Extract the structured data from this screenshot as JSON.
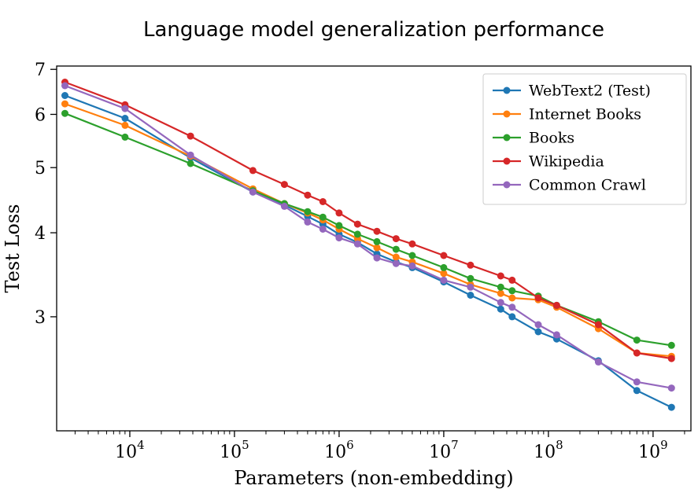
{
  "figure": {
    "title": "Language model generalization performance",
    "xlabel": "Parameters (non-embedding)",
    "ylabel": "Test Loss"
  },
  "chart_data": {
    "type": "line",
    "title": "Language model generalization performance",
    "xlabel": "Parameters (non-embedding)",
    "ylabel": "Test Loss",
    "xscale": "log",
    "yscale": "log",
    "xlim": [
      2000,
      2300000000
    ],
    "ylim": [
      2.03,
      7.08
    ],
    "xticks_exponents": [
      4,
      5,
      6,
      7,
      8,
      9
    ],
    "yticks": [
      7,
      6,
      5,
      4,
      3
    ],
    "grid": false,
    "legend_position": "upper right",
    "marker": "circle",
    "x": [
      2400,
      9000,
      38000,
      150000,
      300000,
      500000,
      700000,
      1000000,
      1500000,
      2300000,
      3500000,
      5000000,
      10000000,
      18000000,
      35000000,
      45000000,
      80000000,
      120000000,
      300000000,
      700000000,
      1500000000
    ],
    "series": [
      {
        "name": "WebText2 (Test)",
        "color": "#1f77b4",
        "values": [
          6.4,
          5.92,
          5.17,
          4.6,
          4.4,
          4.23,
          4.12,
          3.98,
          3.87,
          3.72,
          3.62,
          3.55,
          3.38,
          3.23,
          3.08,
          3.0,
          2.85,
          2.78,
          2.58,
          2.33,
          2.2
        ]
      },
      {
        "name": "Internet Books",
        "color": "#ff7f0e",
        "values": [
          6.22,
          5.78,
          5.2,
          4.65,
          4.42,
          4.28,
          4.18,
          4.05,
          3.92,
          3.8,
          3.68,
          3.62,
          3.48,
          3.35,
          3.25,
          3.2,
          3.18,
          3.1,
          2.88,
          2.65,
          2.62
        ]
      },
      {
        "name": "Books",
        "color": "#2ca02c",
        "values": [
          6.02,
          5.55,
          5.07,
          4.62,
          4.42,
          4.3,
          4.22,
          4.1,
          3.98,
          3.88,
          3.78,
          3.7,
          3.55,
          3.42,
          3.32,
          3.28,
          3.22,
          3.12,
          2.95,
          2.77,
          2.72
        ]
      },
      {
        "name": "Wikipedia",
        "color": "#d62728",
        "values": [
          6.7,
          6.2,
          5.57,
          4.95,
          4.72,
          4.55,
          4.45,
          4.28,
          4.12,
          4.02,
          3.92,
          3.85,
          3.7,
          3.58,
          3.45,
          3.4,
          3.2,
          3.12,
          2.92,
          2.65,
          2.6
        ]
      },
      {
        "name": "Common Crawl",
        "color": "#9467bd",
        "values": [
          6.62,
          6.12,
          5.22,
          4.6,
          4.38,
          4.15,
          4.05,
          3.93,
          3.85,
          3.67,
          3.6,
          3.57,
          3.4,
          3.32,
          3.15,
          3.1,
          2.92,
          2.82,
          2.57,
          2.4,
          2.35
        ]
      }
    ]
  }
}
